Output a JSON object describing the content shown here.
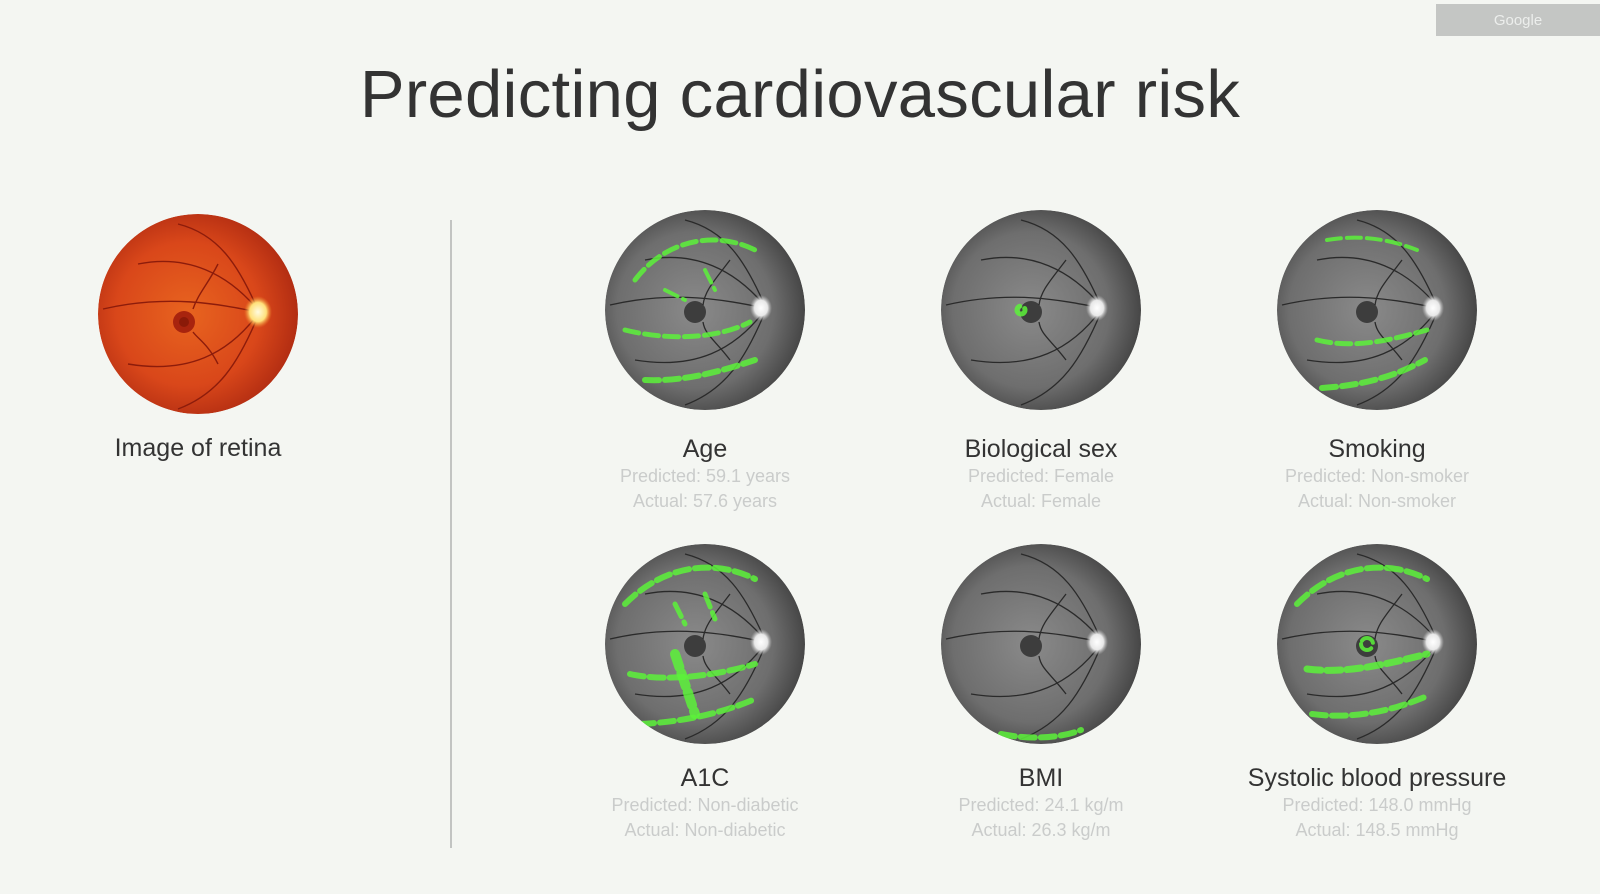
{
  "brand": "Google",
  "title": "Predicting cardiovascular risk",
  "original": {
    "label": "Image of retina",
    "icon": "retina-photo-icon"
  },
  "predictions": [
    {
      "id": "age",
      "label": "Age",
      "predicted": "Predicted: 59.1 years",
      "actual": "Actual: 57.6 years"
    },
    {
      "id": "sex",
      "label": "Biological sex",
      "predicted": "Predicted: Female",
      "actual": "Actual: Female"
    },
    {
      "id": "smoking",
      "label": "Smoking",
      "predicted": "Predicted: Non-smoker",
      "actual": "Actual: Non-smoker"
    },
    {
      "id": "a1c",
      "label": "A1C",
      "predicted": "Predicted: Non-diabetic",
      "actual": "Actual: Non-diabetic"
    },
    {
      "id": "bmi",
      "label": "BMI",
      "predicted": "Predicted: 24.1 kg/m",
      "actual": "Actual: 26.3 kg/m"
    },
    {
      "id": "sbp",
      "label": "Systolic blood pressure",
      "predicted": "Predicted: 148.0 mmHg",
      "actual": "Actual: 148.5 mmHg"
    }
  ],
  "colors": {
    "background": "#f4f6f2",
    "heatmap": "#5cf23a",
    "retina": "#d9471a",
    "label": "#333333",
    "muted": "#cacccb"
  }
}
